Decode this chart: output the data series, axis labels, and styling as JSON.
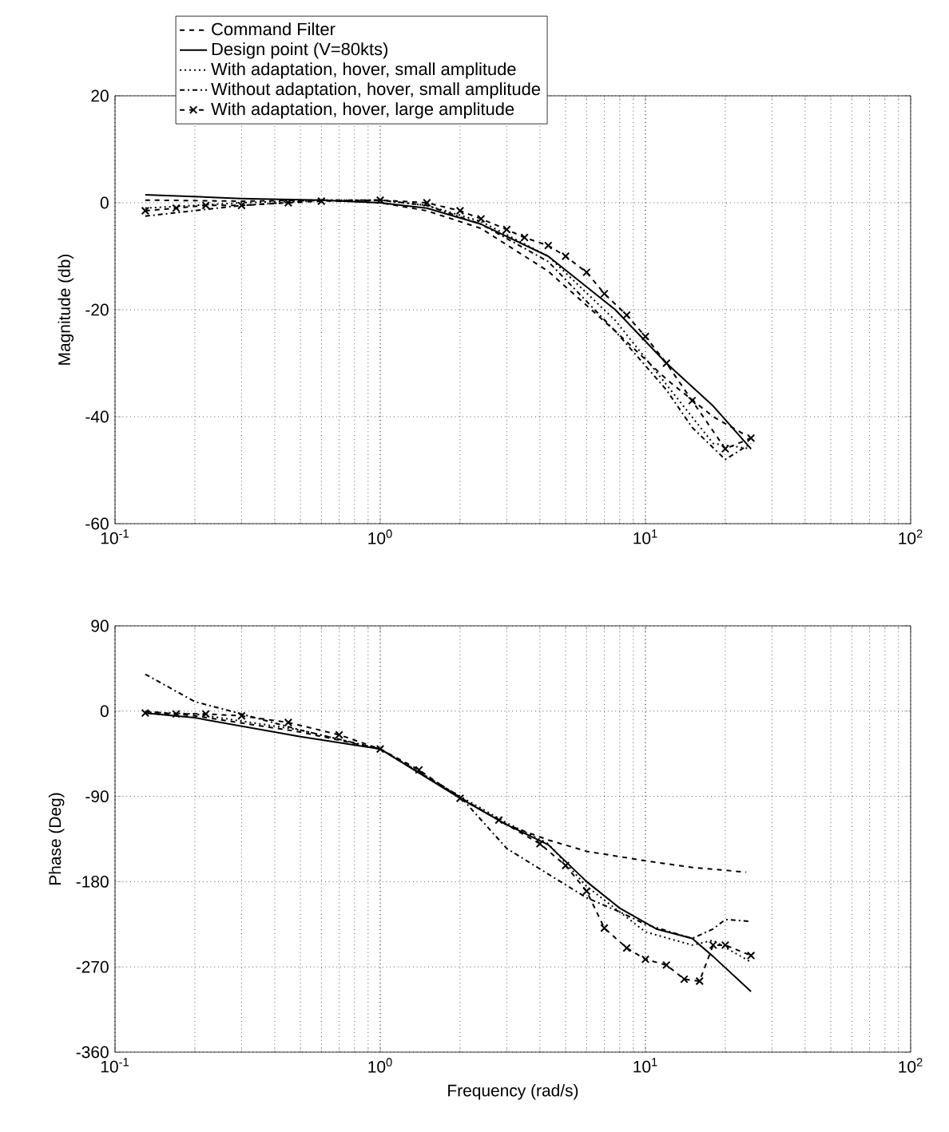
{
  "chart_data": [
    {
      "type": "line",
      "ylabel": "Magnitude (db)",
      "log": "x",
      "grid": true,
      "legend": "top",
      "xlim": [
        0.1,
        100
      ],
      "ylim": [
        -60,
        20
      ],
      "xticks": [
        {
          "value": 0.1,
          "label": "10$^{-1}$"
        },
        {
          "value": 1,
          "label": "10$^{0}$"
        },
        {
          "value": 10,
          "label": "10$^{1}$"
        },
        {
          "value": 100,
          "label": "10$^{2}$"
        }
      ],
      "yticks": [
        -60,
        -40,
        -20,
        0,
        20
      ],
      "series": [
        {
          "name": "Command Filter",
          "color": "#000000",
          "line_style": "dashed",
          "x": [
            0.13,
            0.3,
            0.6,
            1,
            1.5,
            2.4,
            4.3,
            7.7,
            12,
            18,
            24
          ],
          "values": [
            0.5,
            0.3,
            0.5,
            0,
            -1.5,
            -4.8,
            -12.8,
            -24,
            -33,
            -40,
            -43.5
          ]
        },
        {
          "name": "Design point (V=80kts)",
          "color": "#000000",
          "line_style": "solid",
          "x": [
            0.13,
            0.3,
            0.6,
            1,
            1.5,
            2.4,
            4.3,
            7.7,
            12,
            18,
            25
          ],
          "values": [
            1.5,
            0.8,
            0.5,
            0,
            -1,
            -4,
            -10,
            -20,
            -30,
            -38,
            -46
          ]
        },
        {
          "name": "With adaptation, hover, small amplitude",
          "color": "#000000",
          "line_style": "dotted",
          "x": [
            0.13,
            0.3,
            0.6,
            1,
            1.5,
            2.4,
            4.3,
            7.7,
            12,
            18,
            25
          ],
          "values": [
            -1,
            0,
            0.5,
            0.5,
            -0.5,
            -3.5,
            -10,
            -22,
            -34,
            -45,
            -46
          ]
        },
        {
          "name": "Without adaptation, hover, small amplitude",
          "color": "#000000",
          "line_style": "dashdot",
          "x": [
            0.13,
            0.3,
            0.6,
            1,
            1.5,
            2.4,
            4.3,
            7.7,
            12,
            15,
            20,
            25
          ],
          "values": [
            -2.5,
            -0.5,
            0.5,
            0.5,
            -0.5,
            -4,
            -11,
            -24,
            -35,
            -42,
            -48,
            -45
          ]
        },
        {
          "name": "With adaptation, hover, large amplitude",
          "color": "#000000",
          "line_style": "dashed",
          "marker": "cross",
          "x": [
            0.13,
            0.17,
            0.22,
            0.3,
            0.45,
            0.6,
            1,
            1.5,
            2,
            2.4,
            3,
            3.5,
            4.3,
            5,
            6,
            7,
            8.5,
            10,
            12,
            15,
            20,
            25
          ],
          "values": [
            -1.5,
            -1,
            -0.5,
            -0.5,
            0,
            0.3,
            0.5,
            0,
            -1.5,
            -3,
            -5,
            -6.5,
            -8,
            -10,
            -13,
            -17,
            -21,
            -25,
            -30,
            -37,
            -46,
            -44
          ]
        }
      ]
    },
    {
      "type": "line",
      "xlabel": "Frequency (rad/s)",
      "ylabel": "Phase (Deg)",
      "log": "x",
      "grid": true,
      "xlim": [
        0.1,
        100
      ],
      "ylim": [
        -360,
        90
      ],
      "xticks": [
        {
          "value": 0.1,
          "label": "10$^{-1}$"
        },
        {
          "value": 1,
          "label": "10$^{0}$"
        },
        {
          "value": 10,
          "label": "10$^{1}$"
        },
        {
          "value": 100,
          "label": "10$^{2}$"
        }
      ],
      "yticks": [
        -360,
        -270,
        -180,
        -90,
        0,
        90
      ],
      "series": [
        {
          "color": "#000000",
          "line_style": "dashed",
          "x": [
            0.13,
            0.2,
            0.5,
            1,
            2,
            3,
            4.3,
            6,
            10,
            15,
            24
          ],
          "values": [
            0,
            -5,
            -22,
            -40,
            -91,
            -120,
            -136,
            -148,
            -158,
            -165,
            -170
          ]
        },
        {
          "color": "#000000",
          "line_style": "solid",
          "x": [
            0.13,
            0.2,
            0.5,
            1,
            2,
            3,
            4.3,
            6,
            8,
            11,
            15,
            18,
            25
          ],
          "values": [
            -2,
            -7,
            -27,
            -40,
            -92,
            -120,
            -141,
            -180,
            -208,
            -230,
            -240,
            -259,
            -296
          ]
        },
        {
          "color": "#000000",
          "line_style": "dotted",
          "x": [
            0.13,
            0.2,
            0.5,
            1,
            2,
            3,
            4.3,
            6,
            10,
            15,
            18,
            25
          ],
          "values": [
            -1,
            -3,
            -20,
            -40,
            -90,
            -118,
            -140,
            -185,
            -233,
            -247,
            -242,
            -265
          ]
        },
        {
          "color": "#000000",
          "line_style": "dashdot",
          "x": [
            0.13,
            0.2,
            0.3,
            0.5,
            1,
            2,
            3,
            6,
            8,
            10,
            15,
            18,
            20,
            25
          ],
          "values": [
            39,
            10,
            -3,
            -20,
            -40,
            -90,
            -145,
            -197,
            -212,
            -225,
            -240,
            -230,
            -220,
            -222
          ]
        },
        {
          "color": "#000000",
          "line_style": "dashed",
          "marker": "cross",
          "x": [
            0.13,
            0.17,
            0.22,
            0.3,
            0.45,
            0.7,
            1,
            1.4,
            2,
            2.8,
            4,
            5,
            6,
            7,
            8.5,
            10,
            12,
            14,
            16,
            18,
            20,
            25
          ],
          "values": [
            -2,
            -3,
            -3,
            -5,
            -12,
            -25,
            -40,
            -62,
            -92,
            -115,
            -140,
            -163,
            -190,
            -229,
            -250,
            -262,
            -268,
            -283,
            -285,
            -247,
            -247,
            -258
          ]
        }
      ]
    }
  ]
}
